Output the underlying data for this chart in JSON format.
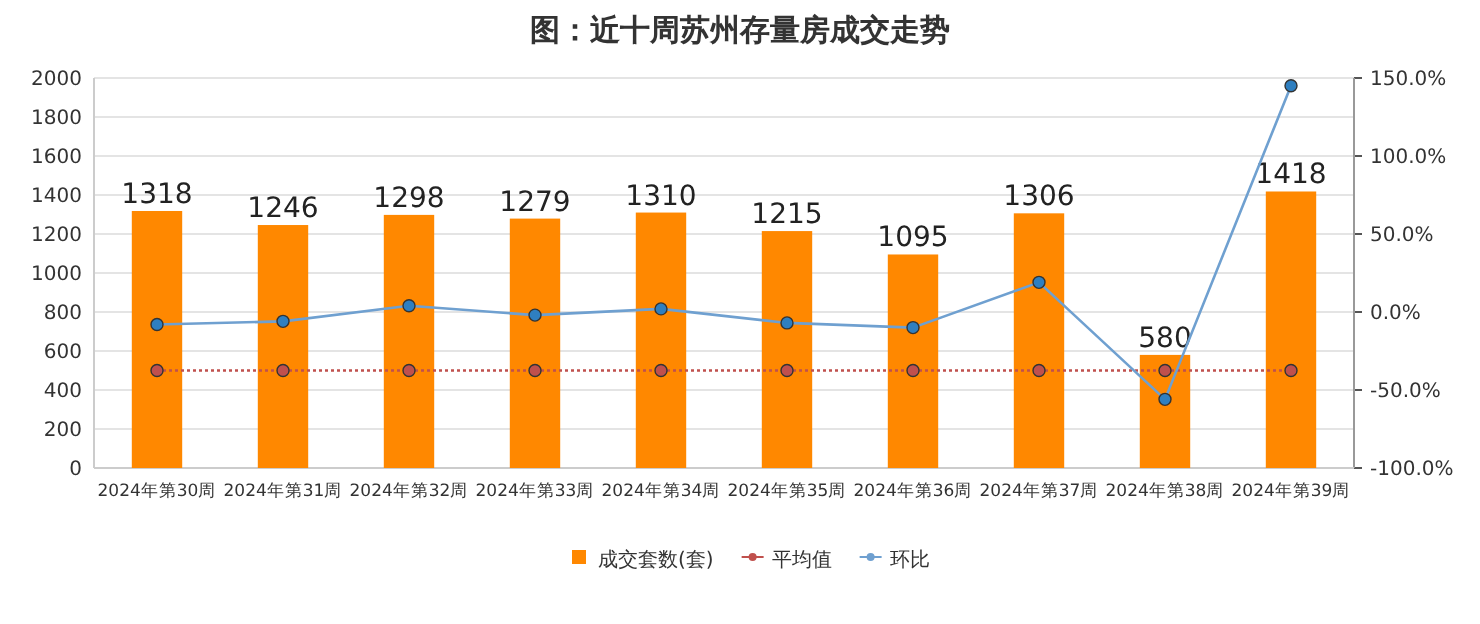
{
  "chart_data": {
    "type": "bar",
    "title": "图：近十周苏州存量房成交走势",
    "categories": [
      "2024年第30周",
      "2024年第31周",
      "2024年第32周",
      "2024年第33周",
      "2024年第34周",
      "2024年第35周",
      "2024年第36周",
      "2024年第37周",
      "2024年第38周",
      "2024年第39周"
    ],
    "series": [
      {
        "name": "成交套数(套)",
        "color": "#ff8800",
        "values": [
          1318,
          1246,
          1298,
          1279,
          1310,
          1215,
          1095,
          1306,
          580,
          1418
        ],
        "data_labels": true
      },
      {
        "name": "平均值",
        "type": "line",
        "color": "#c0504d",
        "line_style": "dotted",
        "marker": "circle",
        "values": [
          500,
          500,
          500,
          500,
          500,
          500,
          500,
          500,
          500,
          500
        ]
      },
      {
        "name": "环比",
        "type": "line",
        "axis": "y2",
        "color": "#6fa0d0",
        "marker": "circle",
        "line_style": "solid",
        "values": [
          -8,
          -6,
          4,
          -2,
          2,
          -7,
          -10,
          19,
          -56,
          145
        ]
      }
    ],
    "ylim": [
      0,
      2000
    ],
    "yticks": [
      0,
      200,
      400,
      600,
      800,
      1000,
      1200,
      1400,
      1600,
      1800,
      2000
    ],
    "y2lim": [
      -100,
      150
    ],
    "y2ticks": [
      {
        "value": -100,
        "label": "-100.0%"
      },
      {
        "value": -50,
        "label": "-50.0%"
      },
      {
        "value": 0,
        "label": "0.0%"
      },
      {
        "value": 50,
        "label": "50.0%"
      },
      {
        "value": 100,
        "label": "100.0%"
      },
      {
        "value": 150,
        "label": "150.0%"
      }
    ],
    "grid": "y",
    "legend": "bottom"
  }
}
